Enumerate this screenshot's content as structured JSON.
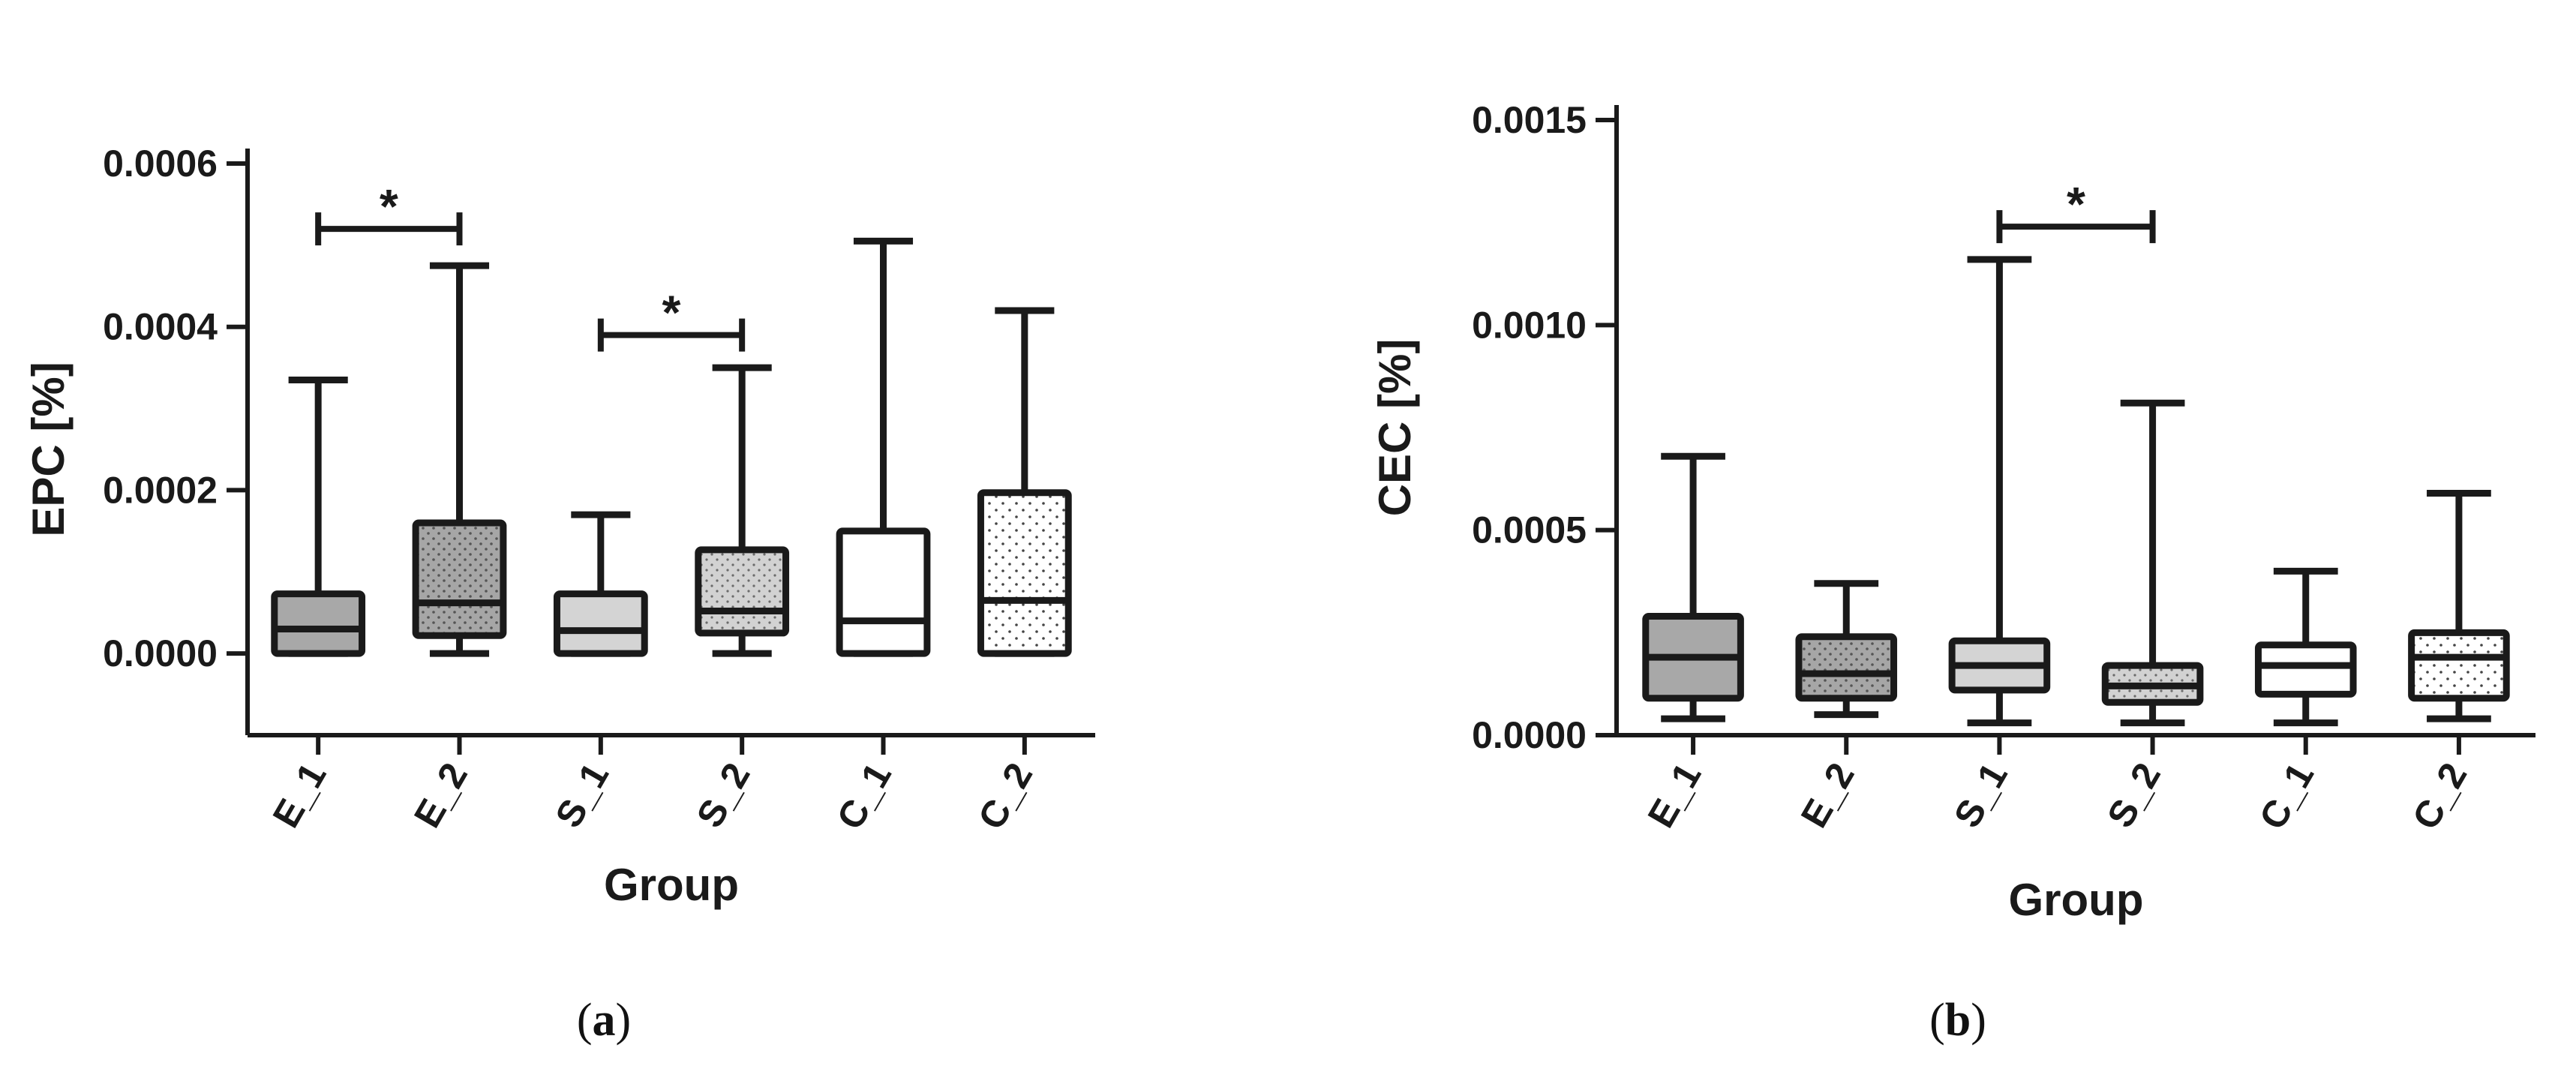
{
  "chart_data": [
    {
      "type": "box",
      "panel_label": "a",
      "xlabel": "Group",
      "ylabel": "EPC [%]",
      "categories": [
        "E_1",
        "E_2",
        "S_1",
        "S_2",
        "C_1",
        "C_2"
      ],
      "ylim": [
        -0.0001,
        0.0006
      ],
      "yticks": [
        0.0,
        0.0002,
        0.0004,
        0.0006
      ],
      "ytick_labels": [
        "0.0000",
        "0.0002",
        "0.0004",
        "0.0006"
      ],
      "boxes": [
        {
          "category": "E_1",
          "min": 0.0,
          "q1": 0.0,
          "median": 3e-05,
          "q3": 7.3e-05,
          "max": 0.000335,
          "fill": "#a8a8a8",
          "pattern": "none"
        },
        {
          "category": "E_2",
          "min": 0.0,
          "q1": 2.2e-05,
          "median": 6.2e-05,
          "q3": 0.00016,
          "max": 0.000475,
          "fill": "#a6a6a6",
          "pattern": "dots"
        },
        {
          "category": "S_1",
          "min": 0.0,
          "q1": 0.0,
          "median": 2.8e-05,
          "q3": 7.3e-05,
          "max": 0.00017,
          "fill": "#d4d4d4",
          "pattern": "none"
        },
        {
          "category": "S_2",
          "min": 0.0,
          "q1": 2.5e-05,
          "median": 5.2e-05,
          "q3": 0.000127,
          "max": 0.00035,
          "fill": "#d2d2d2",
          "pattern": "dots"
        },
        {
          "category": "C_1",
          "min": 0.0,
          "q1": 0.0,
          "median": 4e-05,
          "q3": 0.00015,
          "max": 0.000505,
          "fill": "#ffffff",
          "pattern": "none"
        },
        {
          "category": "C_2",
          "min": 0.0,
          "q1": 0.0,
          "median": 6.5e-05,
          "q3": 0.000197,
          "max": 0.00042,
          "fill": "#f0f0f0",
          "pattern": "dots"
        }
      ],
      "significance": [
        {
          "from": "E_1",
          "to": "E_2",
          "y": 0.00052,
          "label": "*"
        },
        {
          "from": "S_1",
          "to": "S_2",
          "y": 0.00039,
          "label": "*"
        }
      ]
    },
    {
      "type": "box",
      "panel_label": "b",
      "xlabel": "Group",
      "ylabel": "CEC [%]",
      "categories": [
        "E_1",
        "E_2",
        "S_1",
        "S_2",
        "C_1",
        "C_2"
      ],
      "ylim": [
        0.0,
        0.0015
      ],
      "yticks": [
        0.0,
        0.0005,
        0.001,
        0.0015
      ],
      "ytick_labels": [
        "0.0000",
        "0.0005",
        "0.0010",
        "0.0015"
      ],
      "boxes": [
        {
          "category": "E_1",
          "min": 4e-05,
          "q1": 9e-05,
          "median": 0.00019,
          "q3": 0.00029,
          "max": 0.00068,
          "fill": "#a8a8a8",
          "pattern": "none"
        },
        {
          "category": "E_2",
          "min": 5e-05,
          "q1": 9e-05,
          "median": 0.00015,
          "q3": 0.00024,
          "max": 0.00037,
          "fill": "#a6a6a6",
          "pattern": "dots"
        },
        {
          "category": "S_1",
          "min": 3e-05,
          "q1": 0.00011,
          "median": 0.00017,
          "q3": 0.00023,
          "max": 0.00116,
          "fill": "#d4d4d4",
          "pattern": "none"
        },
        {
          "category": "S_2",
          "min": 3e-05,
          "q1": 8e-05,
          "median": 0.00012,
          "q3": 0.00017,
          "max": 0.00081,
          "fill": "#d2d2d2",
          "pattern": "dots"
        },
        {
          "category": "C_1",
          "min": 3e-05,
          "q1": 0.0001,
          "median": 0.00017,
          "q3": 0.00022,
          "max": 0.0004,
          "fill": "#ffffff",
          "pattern": "none"
        },
        {
          "category": "C_2",
          "min": 4e-05,
          "q1": 9e-05,
          "median": 0.00019,
          "q3": 0.00025,
          "max": 0.00059,
          "fill": "#f0f0f0",
          "pattern": "dots"
        }
      ],
      "significance": [
        {
          "from": "S_1",
          "to": "S_2",
          "y": 0.00124,
          "label": "*"
        }
      ]
    }
  ]
}
